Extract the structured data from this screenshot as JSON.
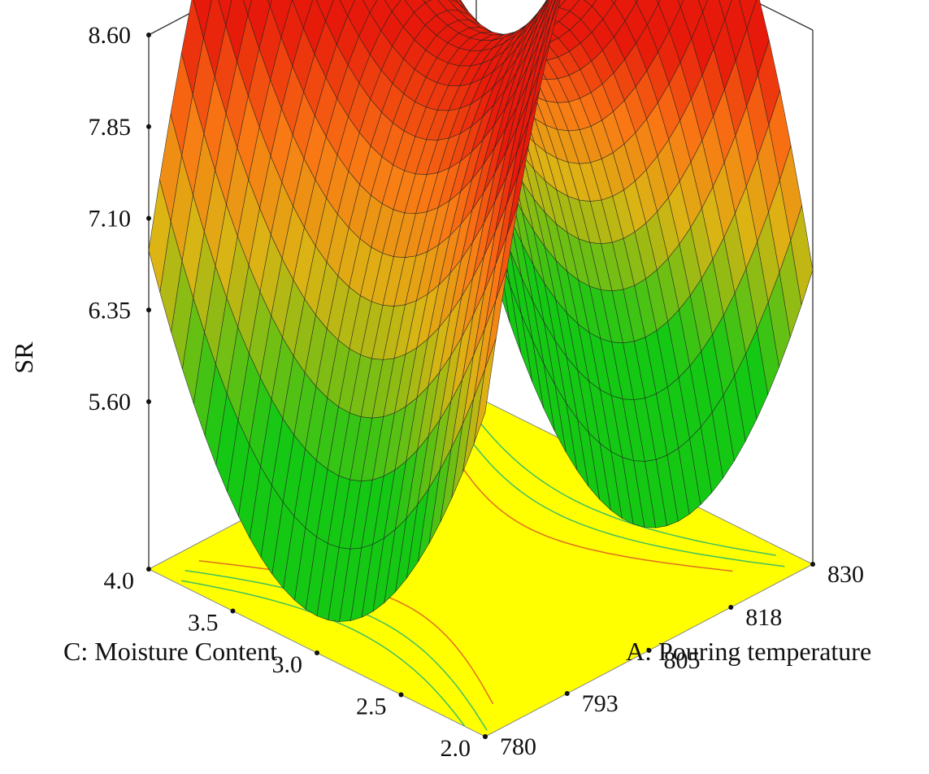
{
  "chart_data": {
    "type": "surface3d",
    "title": "",
    "zlabel": "SR",
    "xlabel": "A: Pouring temperature",
    "ylabel": "C: Moisture Content",
    "x_ticks": [
      "780",
      "793",
      "805",
      "818",
      "830"
    ],
    "y_ticks": [
      "2.0",
      "2.5",
      "3.0",
      "3.5",
      "4.0"
    ],
    "z_ticks": [
      "5.60",
      "6.35",
      "7.10",
      "7.85",
      "8.60"
    ],
    "xlim": [
      780,
      830
    ],
    "ylim": [
      2.0,
      4.0
    ],
    "zlim": [
      5.6,
      8.6
    ],
    "corner_values": [
      {
        "x": 780,
        "y": 2.0,
        "z": 6.9
      },
      {
        "x": 780,
        "y": 4.0,
        "z": 7.0
      },
      {
        "x": 830,
        "y": 2.0,
        "z": 6.5
      },
      {
        "x": 830,
        "y": 4.0,
        "z": 5.7
      }
    ],
    "peak": {
      "x": 804,
      "y": 3.05,
      "z": 8.6
    },
    "contour_floor": true,
    "colors": {
      "high": "#e8220a",
      "mid": "#f08a14",
      "low": "#14c814",
      "floor": "#ffff00"
    }
  }
}
